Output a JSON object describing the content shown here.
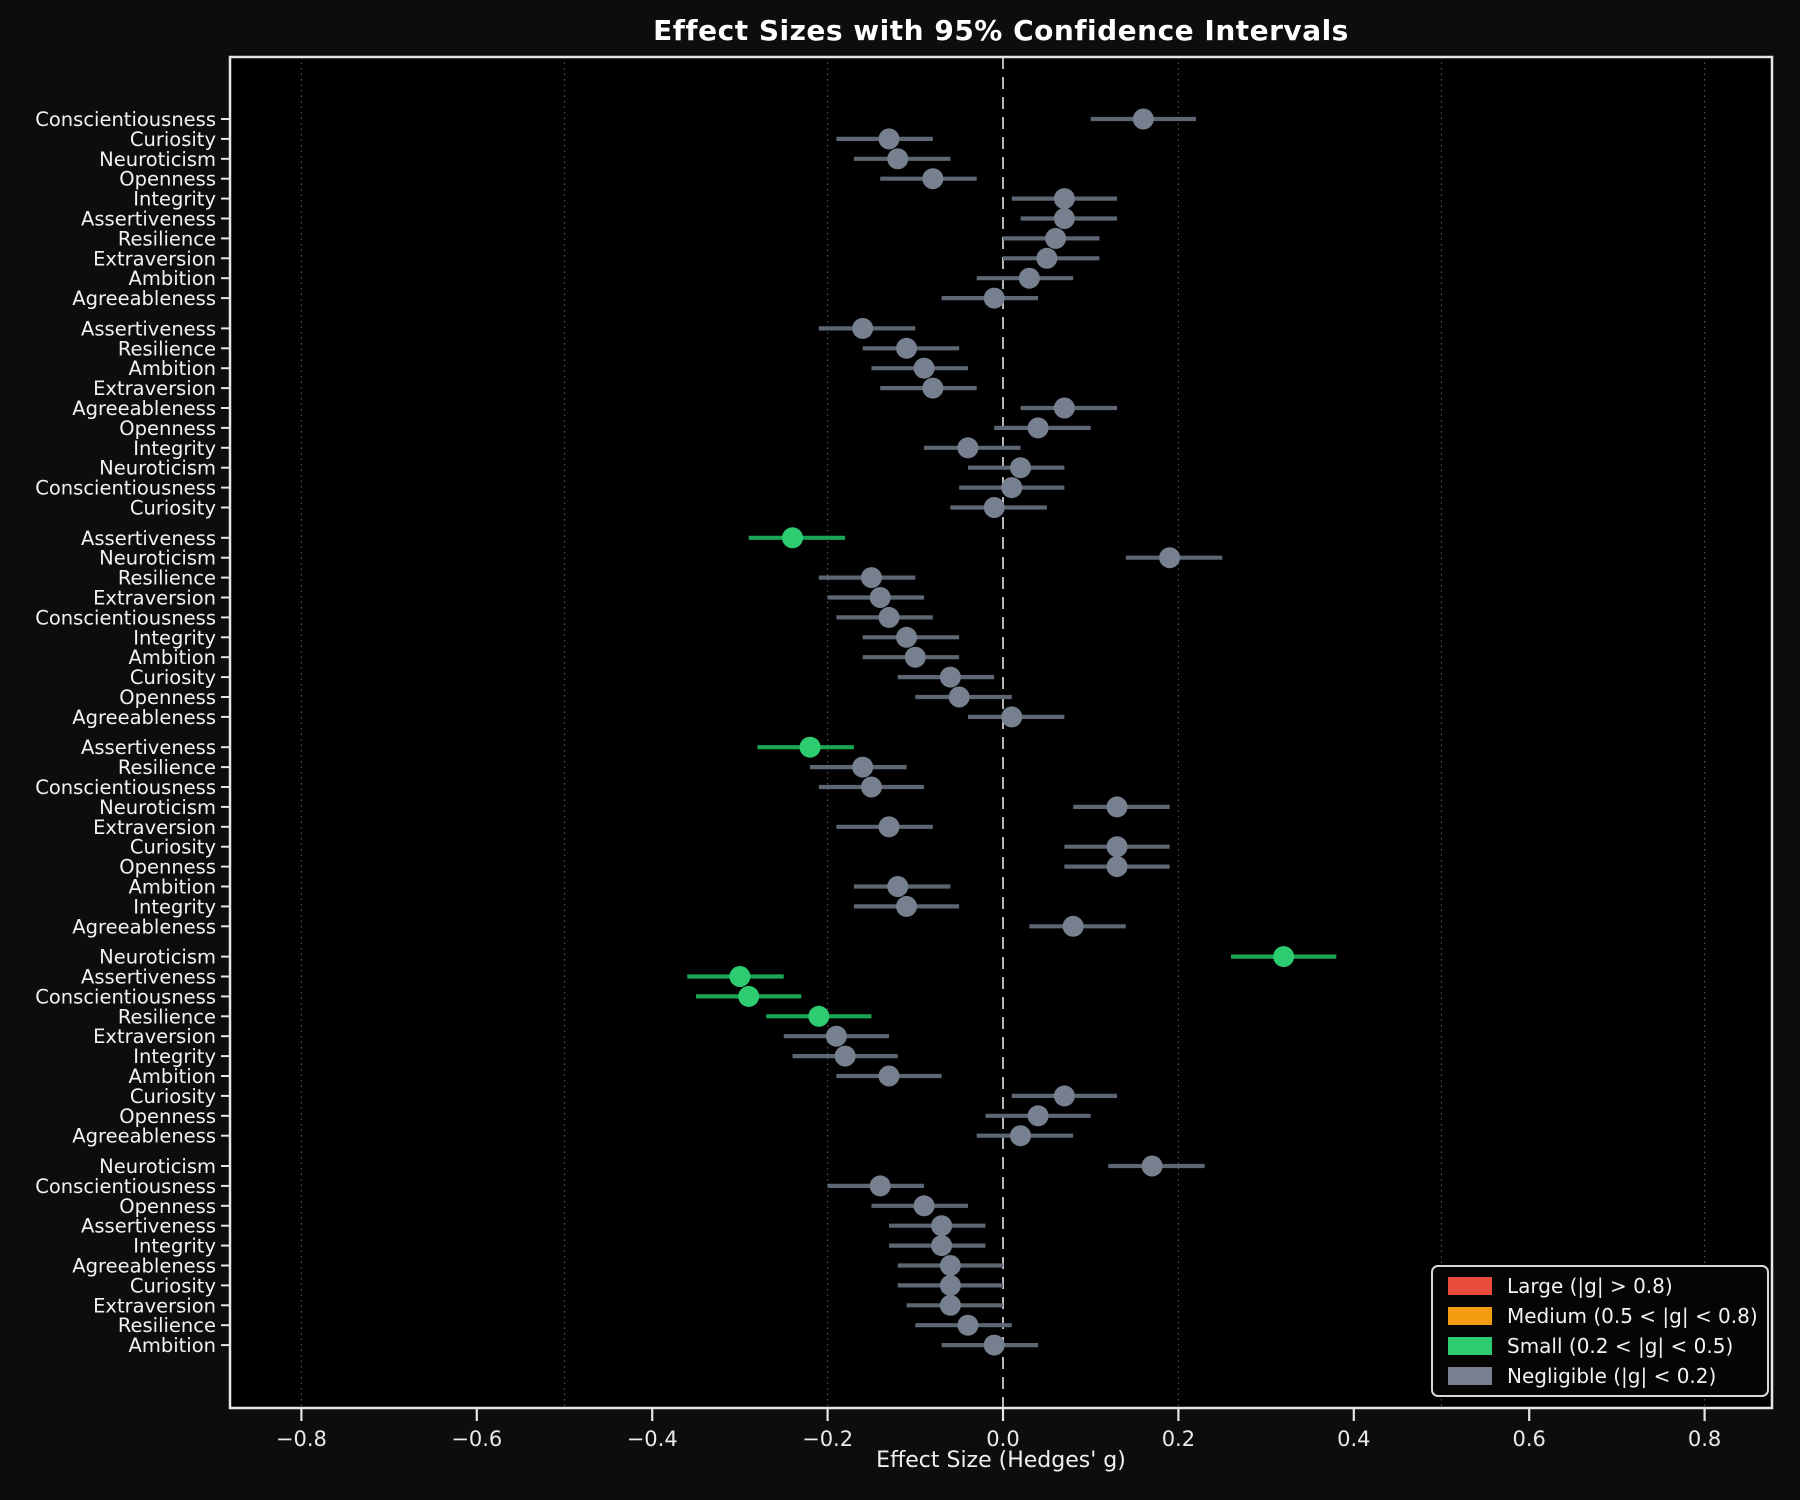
{
  "chart_data": {
    "type": "scatter",
    "variant": "forest-plot-dot-with-ci",
    "title": "Effect Sizes with 95% Confidence Intervals",
    "xlabel": "Effect Size (Hedges' g)",
    "xlim": [
      -0.88,
      0.88
    ],
    "xticks": [
      -0.8,
      -0.6,
      -0.4,
      -0.2,
      0.0,
      0.2,
      0.4,
      0.6,
      0.8
    ],
    "xtick_labels": [
      "−0.8",
      "−0.6",
      "−0.4",
      "−0.2",
      "0.0",
      "0.2",
      "0.4",
      "0.6",
      "0.8"
    ],
    "zero_line": 0.0,
    "threshold_gridlines": [
      -0.8,
      -0.5,
      -0.2,
      0.2,
      0.5,
      0.8
    ],
    "grid_style": "dotted-vertical",
    "legend_position": "lower right",
    "legend": [
      {
        "label": "Large (|g| > 0.8)",
        "color": "#e74c3c",
        "key": "large"
      },
      {
        "label": "Medium (0.5 < |g| < 0.8)",
        "color": "#f39c12",
        "key": "medium"
      },
      {
        "label": "Small (0.2 < |g| < 0.5)",
        "color": "#2ecc71",
        "key": "small"
      },
      {
        "label": "Negligible (|g| < 0.2)",
        "color": "#76808f",
        "key": "negligible"
      }
    ],
    "colors": {
      "large": "#e74c3c",
      "medium": "#f39c12",
      "small": "#2ecc71",
      "negligible": "#76808f"
    },
    "line_colors": {
      "large": "#b93a2f",
      "medium": "#c47d0e",
      "small": "#1aa654",
      "negligible": "#5d6673"
    },
    "groups": [
      {
        "rows": [
          {
            "label": "Conscientiousness",
            "g": 0.16,
            "lo": 0.1,
            "hi": 0.22,
            "size": "negligible"
          },
          {
            "label": "Curiosity",
            "g": -0.13,
            "lo": -0.19,
            "hi": -0.08,
            "size": "negligible"
          },
          {
            "label": "Neuroticism",
            "g": -0.12,
            "lo": -0.17,
            "hi": -0.06,
            "size": "negligible"
          },
          {
            "label": "Openness",
            "g": -0.08,
            "lo": -0.14,
            "hi": -0.03,
            "size": "negligible"
          },
          {
            "label": "Integrity",
            "g": 0.07,
            "lo": 0.01,
            "hi": 0.13,
            "size": "negligible"
          },
          {
            "label": "Assertiveness",
            "g": 0.07,
            "lo": 0.02,
            "hi": 0.13,
            "size": "negligible"
          },
          {
            "label": "Resilience",
            "g": 0.06,
            "lo": 0.0,
            "hi": 0.11,
            "size": "negligible"
          },
          {
            "label": "Extraversion",
            "g": 0.05,
            "lo": 0.0,
            "hi": 0.11,
            "size": "negligible"
          },
          {
            "label": "Ambition",
            "g": 0.03,
            "lo": -0.03,
            "hi": 0.08,
            "size": "negligible"
          },
          {
            "label": "Agreeableness",
            "g": -0.01,
            "lo": -0.07,
            "hi": 0.04,
            "size": "negligible"
          }
        ]
      },
      {
        "rows": [
          {
            "label": "Assertiveness",
            "g": -0.16,
            "lo": -0.21,
            "hi": -0.1,
            "size": "negligible"
          },
          {
            "label": "Resilience",
            "g": -0.11,
            "lo": -0.16,
            "hi": -0.05,
            "size": "negligible"
          },
          {
            "label": "Ambition",
            "g": -0.09,
            "lo": -0.15,
            "hi": -0.04,
            "size": "negligible"
          },
          {
            "label": "Extraversion",
            "g": -0.08,
            "lo": -0.14,
            "hi": -0.03,
            "size": "negligible"
          },
          {
            "label": "Agreeableness",
            "g": 0.07,
            "lo": 0.02,
            "hi": 0.13,
            "size": "negligible"
          },
          {
            "label": "Openness",
            "g": 0.04,
            "lo": -0.01,
            "hi": 0.1,
            "size": "negligible"
          },
          {
            "label": "Integrity",
            "g": -0.04,
            "lo": -0.09,
            "hi": 0.02,
            "size": "negligible"
          },
          {
            "label": "Neuroticism",
            "g": 0.02,
            "lo": -0.04,
            "hi": 0.07,
            "size": "negligible"
          },
          {
            "label": "Conscientiousness",
            "g": 0.01,
            "lo": -0.05,
            "hi": 0.07,
            "size": "negligible"
          },
          {
            "label": "Curiosity",
            "g": -0.01,
            "lo": -0.06,
            "hi": 0.05,
            "size": "negligible"
          }
        ]
      },
      {
        "rows": [
          {
            "label": "Assertiveness",
            "g": -0.24,
            "lo": -0.29,
            "hi": -0.18,
            "size": "small"
          },
          {
            "label": "Neuroticism",
            "g": 0.19,
            "lo": 0.14,
            "hi": 0.25,
            "size": "negligible"
          },
          {
            "label": "Resilience",
            "g": -0.15,
            "lo": -0.21,
            "hi": -0.1,
            "size": "negligible"
          },
          {
            "label": "Extraversion",
            "g": -0.14,
            "lo": -0.2,
            "hi": -0.09,
            "size": "negligible"
          },
          {
            "label": "Conscientiousness",
            "g": -0.13,
            "lo": -0.19,
            "hi": -0.08,
            "size": "negligible"
          },
          {
            "label": "Integrity",
            "g": -0.11,
            "lo": -0.16,
            "hi": -0.05,
            "size": "negligible"
          },
          {
            "label": "Ambition",
            "g": -0.1,
            "lo": -0.16,
            "hi": -0.05,
            "size": "negligible"
          },
          {
            "label": "Curiosity",
            "g": -0.06,
            "lo": -0.12,
            "hi": -0.01,
            "size": "negligible"
          },
          {
            "label": "Openness",
            "g": -0.05,
            "lo": -0.1,
            "hi": 0.01,
            "size": "negligible"
          },
          {
            "label": "Agreeableness",
            "g": 0.01,
            "lo": -0.04,
            "hi": 0.07,
            "size": "negligible"
          }
        ]
      },
      {
        "rows": [
          {
            "label": "Assertiveness",
            "g": -0.22,
            "lo": -0.28,
            "hi": -0.17,
            "size": "small"
          },
          {
            "label": "Resilience",
            "g": -0.16,
            "lo": -0.22,
            "hi": -0.11,
            "size": "negligible"
          },
          {
            "label": "Conscientiousness",
            "g": -0.15,
            "lo": -0.21,
            "hi": -0.09,
            "size": "negligible"
          },
          {
            "label": "Neuroticism",
            "g": 0.13,
            "lo": 0.08,
            "hi": 0.19,
            "size": "negligible"
          },
          {
            "label": "Extraversion",
            "g": -0.13,
            "lo": -0.19,
            "hi": -0.08,
            "size": "negligible"
          },
          {
            "label": "Curiosity",
            "g": 0.13,
            "lo": 0.07,
            "hi": 0.19,
            "size": "negligible"
          },
          {
            "label": "Openness",
            "g": 0.13,
            "lo": 0.07,
            "hi": 0.19,
            "size": "negligible"
          },
          {
            "label": "Ambition",
            "g": -0.12,
            "lo": -0.17,
            "hi": -0.06,
            "size": "negligible"
          },
          {
            "label": "Integrity",
            "g": -0.11,
            "lo": -0.17,
            "hi": -0.05,
            "size": "negligible"
          },
          {
            "label": "Agreeableness",
            "g": 0.08,
            "lo": 0.03,
            "hi": 0.14,
            "size": "negligible"
          }
        ]
      },
      {
        "rows": [
          {
            "label": "Neuroticism",
            "g": 0.32,
            "lo": 0.26,
            "hi": 0.38,
            "size": "small"
          },
          {
            "label": "Assertiveness",
            "g": -0.3,
            "lo": -0.36,
            "hi": -0.25,
            "size": "small"
          },
          {
            "label": "Conscientiousness",
            "g": -0.29,
            "lo": -0.35,
            "hi": -0.23,
            "size": "small"
          },
          {
            "label": "Resilience",
            "g": -0.21,
            "lo": -0.27,
            "hi": -0.15,
            "size": "small"
          },
          {
            "label": "Extraversion",
            "g": -0.19,
            "lo": -0.25,
            "hi": -0.13,
            "size": "negligible"
          },
          {
            "label": "Integrity",
            "g": -0.18,
            "lo": -0.24,
            "hi": -0.12,
            "size": "negligible"
          },
          {
            "label": "Ambition",
            "g": -0.13,
            "lo": -0.19,
            "hi": -0.07,
            "size": "negligible"
          },
          {
            "label": "Curiosity",
            "g": 0.07,
            "lo": 0.01,
            "hi": 0.13,
            "size": "negligible"
          },
          {
            "label": "Openness",
            "g": 0.04,
            "lo": -0.02,
            "hi": 0.1,
            "size": "negligible"
          },
          {
            "label": "Agreeableness",
            "g": 0.02,
            "lo": -0.03,
            "hi": 0.08,
            "size": "negligible"
          }
        ]
      },
      {
        "rows": [
          {
            "label": "Neuroticism",
            "g": 0.17,
            "lo": 0.12,
            "hi": 0.23,
            "size": "negligible"
          },
          {
            "label": "Conscientiousness",
            "g": -0.14,
            "lo": -0.2,
            "hi": -0.09,
            "size": "negligible"
          },
          {
            "label": "Openness",
            "g": -0.09,
            "lo": -0.15,
            "hi": -0.04,
            "size": "negligible"
          },
          {
            "label": "Assertiveness",
            "g": -0.07,
            "lo": -0.13,
            "hi": -0.02,
            "size": "negligible"
          },
          {
            "label": "Integrity",
            "g": -0.07,
            "lo": -0.13,
            "hi": -0.02,
            "size": "negligible"
          },
          {
            "label": "Agreeableness",
            "g": -0.06,
            "lo": -0.12,
            "hi": 0.0,
            "size": "negligible"
          },
          {
            "label": "Curiosity",
            "g": -0.06,
            "lo": -0.12,
            "hi": 0.0,
            "size": "negligible"
          },
          {
            "label": "Extraversion",
            "g": -0.06,
            "lo": -0.11,
            "hi": 0.0,
            "size": "negligible"
          },
          {
            "label": "Resilience",
            "g": -0.04,
            "lo": -0.1,
            "hi": 0.01,
            "size": "negligible"
          },
          {
            "label": "Ambition",
            "g": -0.01,
            "lo": -0.07,
            "hi": 0.04,
            "size": "negligible"
          }
        ]
      }
    ]
  }
}
